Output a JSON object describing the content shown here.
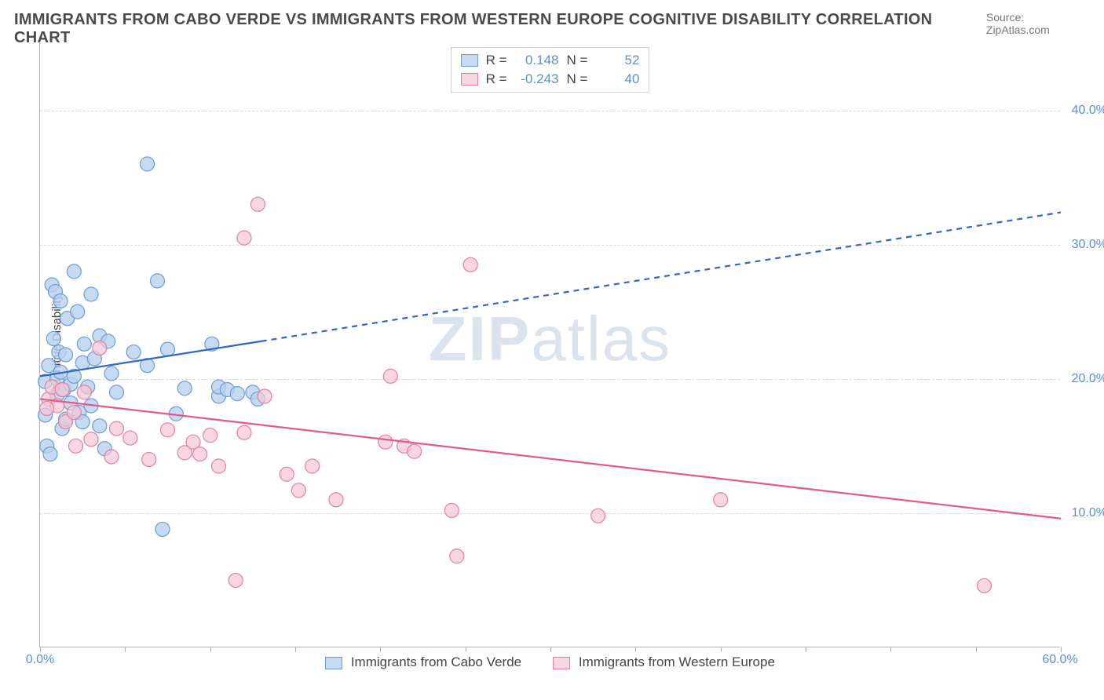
{
  "title": "IMMIGRANTS FROM CABO VERDE VS IMMIGRANTS FROM WESTERN EUROPE COGNITIVE DISABILITY CORRELATION CHART",
  "source": "Source: ZipAtlas.com",
  "watermark_bold": "ZIP",
  "watermark_light": "atlas",
  "y_axis_label": "Cognitive Disability",
  "chart": {
    "type": "scatter",
    "xlim": [
      0,
      60
    ],
    "ylim": [
      0,
      45
    ],
    "y_ticks": [
      10,
      20,
      30,
      40
    ],
    "y_tick_labels": [
      "10.0%",
      "20.0%",
      "30.0%",
      "40.0%"
    ],
    "x_ticks_minor": [
      0,
      5,
      10,
      15,
      20,
      25,
      30,
      35,
      40,
      45,
      50,
      55,
      60
    ],
    "x_min_label": "0.0%",
    "x_max_label": "60.0%",
    "grid_color": "#d8d8d8",
    "axis_color": "#b0b0b0",
    "background_color": "#ffffff",
    "tick_label_color": "#5a8fd6",
    "series": [
      {
        "name": "Immigrants from Cabo Verde",
        "marker_color_fill": "#b8d1efcc",
        "marker_color_stroke": "#6a9dd8",
        "marker_radius": 9,
        "line_color": "#2e67c4",
        "line_width": 2.2,
        "r": 0.148,
        "n": 52,
        "regression": {
          "x0": 0,
          "y0": 20.2,
          "x1_solid": 13,
          "y1_solid": 22.8,
          "x1_dashed": 60,
          "y1_dashed": 32.4
        },
        "points": [
          [
            0.3,
            19.8
          ],
          [
            0.5,
            21.0
          ],
          [
            0.7,
            27.0
          ],
          [
            0.8,
            23.0
          ],
          [
            0.9,
            26.5
          ],
          [
            1.0,
            20.0
          ],
          [
            1.0,
            18.8
          ],
          [
            1.1,
            22.0
          ],
          [
            1.2,
            25.8
          ],
          [
            1.2,
            20.5
          ],
          [
            1.3,
            16.3
          ],
          [
            1.4,
            19.2
          ],
          [
            1.5,
            17.0
          ],
          [
            1.5,
            21.8
          ],
          [
            1.6,
            24.5
          ],
          [
            1.8,
            18.2
          ],
          [
            1.8,
            19.6
          ],
          [
            2.0,
            28.0
          ],
          [
            2.0,
            20.2
          ],
          [
            2.2,
            25.0
          ],
          [
            2.3,
            17.5
          ],
          [
            2.5,
            21.2
          ],
          [
            2.5,
            16.8
          ],
          [
            2.6,
            22.6
          ],
          [
            2.8,
            19.4
          ],
          [
            3.0,
            18.0
          ],
          [
            3.0,
            26.3
          ],
          [
            3.2,
            21.5
          ],
          [
            3.5,
            23.2
          ],
          [
            3.5,
            16.5
          ],
          [
            3.8,
            14.8
          ],
          [
            4.0,
            22.8
          ],
          [
            4.2,
            20.4
          ],
          [
            4.5,
            19.0
          ],
          [
            5.5,
            22.0
          ],
          [
            6.3,
            21.0
          ],
          [
            6.3,
            36.0
          ],
          [
            6.9,
            27.3
          ],
          [
            7.2,
            8.8
          ],
          [
            7.5,
            22.2
          ],
          [
            8.0,
            17.4
          ],
          [
            8.5,
            19.3
          ],
          [
            10.1,
            22.6
          ],
          [
            10.5,
            18.7
          ],
          [
            10.5,
            19.4
          ],
          [
            11.0,
            19.2
          ],
          [
            11.6,
            18.9
          ],
          [
            12.5,
            19.0
          ],
          [
            12.8,
            18.5
          ],
          [
            0.4,
            15.0
          ],
          [
            0.6,
            14.4
          ],
          [
            0.3,
            17.3
          ]
        ]
      },
      {
        "name": "Immigrants from Western Europe",
        "marker_color_fill": "#f5c6d4b3",
        "marker_color_stroke": "#e57fa1",
        "marker_radius": 9,
        "line_color": "#e6588a",
        "line_width": 2.2,
        "r": -0.243,
        "n": 40,
        "regression": {
          "x0": 0,
          "y0": 18.5,
          "x1_solid": 60,
          "y1_solid": 9.6
        },
        "points": [
          [
            0.5,
            18.5
          ],
          [
            0.7,
            19.4
          ],
          [
            1.0,
            18.0
          ],
          [
            1.3,
            19.2
          ],
          [
            1.5,
            16.8
          ],
          [
            2.0,
            17.5
          ],
          [
            2.1,
            15.0
          ],
          [
            2.6,
            19.0
          ],
          [
            3.0,
            15.5
          ],
          [
            3.5,
            22.3
          ],
          [
            4.2,
            14.2
          ],
          [
            4.5,
            16.3
          ],
          [
            5.3,
            15.6
          ],
          [
            6.4,
            14.0
          ],
          [
            7.5,
            16.2
          ],
          [
            8.5,
            14.5
          ],
          [
            9.0,
            15.3
          ],
          [
            9.4,
            14.4
          ],
          [
            10.0,
            15.8
          ],
          [
            10.5,
            13.5
          ],
          [
            11.5,
            5.0
          ],
          [
            12.0,
            30.5
          ],
          [
            12.0,
            16.0
          ],
          [
            12.8,
            33.0
          ],
          [
            13.2,
            18.7
          ],
          [
            14.5,
            12.9
          ],
          [
            15.2,
            11.7
          ],
          [
            16.0,
            13.5
          ],
          [
            17.4,
            11.0
          ],
          [
            20.3,
            15.3
          ],
          [
            20.6,
            20.2
          ],
          [
            21.4,
            15.0
          ],
          [
            22.0,
            14.6
          ],
          [
            24.2,
            10.2
          ],
          [
            24.5,
            6.8
          ],
          [
            25.3,
            28.5
          ],
          [
            32.8,
            9.8
          ],
          [
            40.0,
            11.0
          ],
          [
            55.5,
            4.6
          ],
          [
            0.4,
            17.8
          ]
        ]
      }
    ]
  },
  "stats": {
    "r_label": "R =",
    "n_label": "N ="
  },
  "legend": {
    "series_a": "Immigrants from Cabo Verde",
    "series_b": "Immigrants from Western Europe"
  }
}
